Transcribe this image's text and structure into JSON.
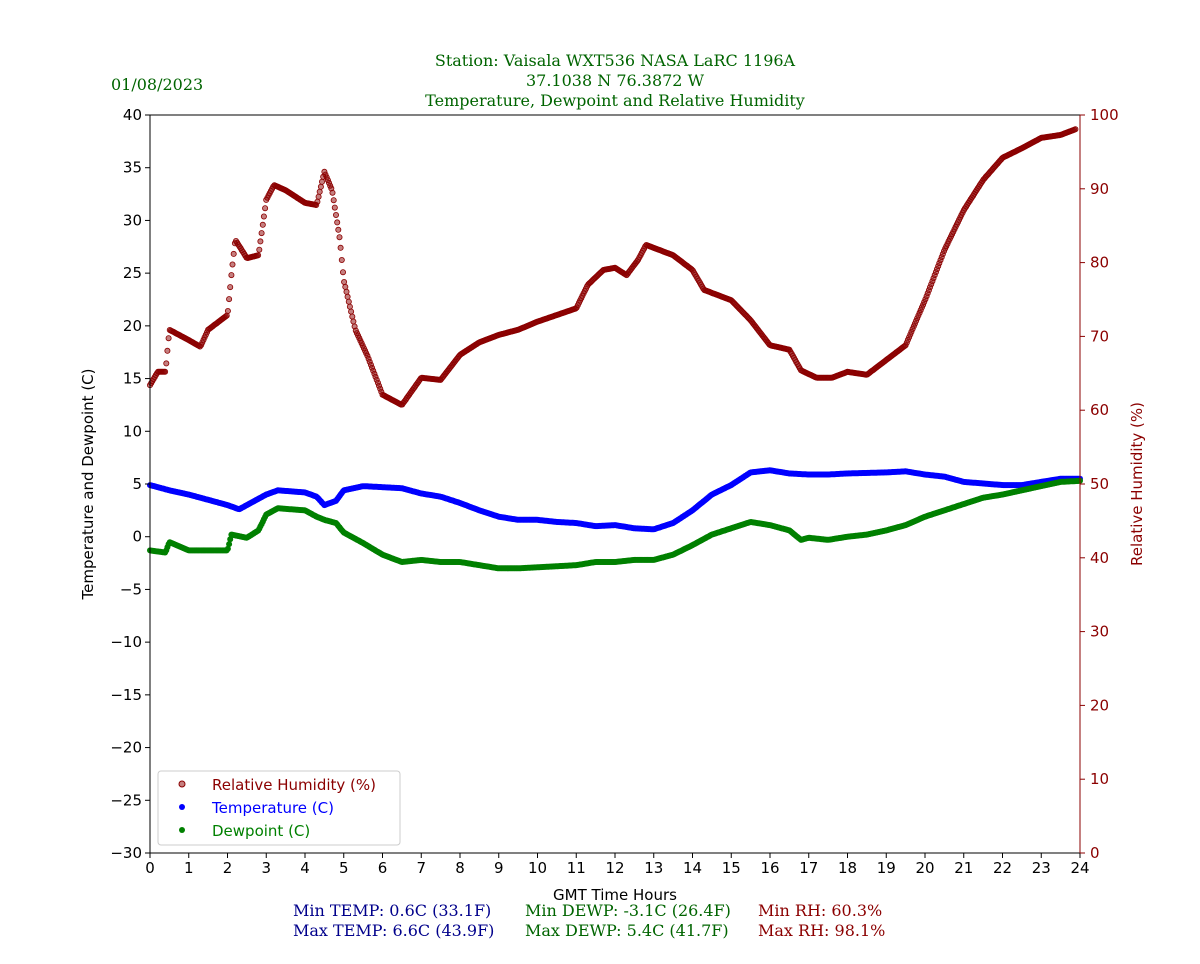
{
  "header": {
    "date": "01/08/2023",
    "title_line1": "Station:  Vaisala WXT536  NASA LaRC 1196A",
    "title_line2": "37.1038 N 76.3872 W",
    "title_line3": "Temperature, Dewpoint and Relative Humidity"
  },
  "stats": {
    "min_temp": "Min TEMP: 0.6C (33.1F)",
    "max_temp": "Max TEMP: 6.6C (43.9F)",
    "min_dewp": "Min DEWP: -3.1C (26.4F)",
    "max_dewp": "Max DEWP: 5.4C (41.7F)",
    "min_rh": "Min RH: 60.3%",
    "max_rh": "Max RH: 98.1%"
  },
  "colors": {
    "title": "#006400",
    "rh": "#8b0000",
    "temp": "#0000ff",
    "dewp": "#008000",
    "temp_stat": "#00008b"
  },
  "chart_data": {
    "type": "scatter",
    "xlabel": "GMT Time Hours",
    "ylabel": "Temperature and Dewpoint (C)",
    "y2label": "Relative Humidity (%)",
    "xlim": [
      0,
      24
    ],
    "ylim": [
      -30,
      40
    ],
    "y2lim": [
      0,
      100
    ],
    "xticks": [
      "0",
      "1",
      "2",
      "3",
      "4",
      "5",
      "6",
      "7",
      "8",
      "9",
      "10",
      "11",
      "12",
      "13",
      "14",
      "15",
      "16",
      "17",
      "18",
      "19",
      "20",
      "21",
      "22",
      "23",
      "24"
    ],
    "yticks": [
      "−30",
      "−25",
      "−20",
      "−15",
      "−10",
      "−5",
      "0",
      "5",
      "10",
      "15",
      "20",
      "25",
      "30",
      "35",
      "40"
    ],
    "y2ticks": [
      "0",
      "10",
      "20",
      "30",
      "40",
      "50",
      "60",
      "70",
      "80",
      "90",
      "100"
    ],
    "legend_position": "lower-left",
    "series": [
      {
        "name": "Relative Humidity (%)",
        "axis": "right",
        "color": "#8b0000",
        "x": [
          0,
          0.2,
          0.4,
          0.5,
          1,
          1.3,
          1.5,
          2,
          2.1,
          2.2,
          2.5,
          2.8,
          3,
          3.2,
          3.5,
          4,
          4.3,
          4.5,
          4.7,
          4.9,
          5,
          5.3,
          5.6,
          6,
          6.5,
          7,
          7.5,
          8,
          8.5,
          9,
          9.5,
          10,
          10.5,
          11,
          11.3,
          11.7,
          12,
          12.3,
          12.6,
          12.8,
          13.5,
          14,
          14.3,
          15,
          15.5,
          16,
          16.5,
          16.8,
          17.2,
          17.6,
          18,
          18.5,
          19,
          19.5,
          20,
          20.5,
          21,
          21.5,
          22,
          22.5,
          23,
          23.5,
          23.9
        ],
        "y": [
          63.4,
          65.2,
          65.2,
          70.9,
          69.5,
          68.6,
          70.9,
          72.9,
          78.3,
          83.1,
          80.6,
          81.0,
          88.5,
          90.5,
          89.8,
          88.1,
          87.8,
          92.3,
          89.8,
          83.1,
          77.6,
          70.9,
          67.5,
          62.1,
          60.7,
          64.4,
          64.1,
          67.5,
          69.2,
          70.2,
          70.9,
          72.0,
          72.9,
          73.8,
          77.0,
          79.0,
          79.3,
          78.3,
          80.4,
          82.4,
          81.0,
          79.0,
          76.3,
          74.9,
          72.2,
          68.8,
          68.2,
          65.4,
          64.4,
          64.4,
          65.2,
          64.8,
          66.8,
          68.8,
          74.9,
          81.7,
          87.1,
          91.2,
          94.2,
          95.5,
          96.9,
          97.3,
          98.1
        ]
      },
      {
        "name": "Temperature (C)",
        "axis": "left",
        "color": "#0000ff",
        "x": [
          0,
          0.5,
          1,
          1.5,
          2,
          2.3,
          2.5,
          3,
          3.3,
          4,
          4.3,
          4.5,
          4.8,
          5,
          5.5,
          6,
          6.5,
          7,
          7.5,
          8,
          8.5,
          9,
          9.5,
          10,
          10.5,
          11,
          11.5,
          12,
          12.5,
          13,
          13.5,
          14,
          14.5,
          15,
          15.5,
          16,
          16.5,
          17,
          17.5,
          18,
          19,
          19.5,
          20,
          20.5,
          21,
          22,
          22.5,
          23,
          23.5,
          24
        ],
        "y": [
          4.9,
          4.4,
          4.0,
          3.5,
          3.0,
          2.6,
          3.0,
          4.0,
          4.4,
          4.2,
          3.8,
          3.0,
          3.4,
          4.4,
          4.8,
          4.7,
          4.6,
          4.1,
          3.8,
          3.2,
          2.5,
          1.9,
          1.6,
          1.6,
          1.4,
          1.3,
          1.0,
          1.1,
          0.8,
          0.7,
          1.3,
          2.5,
          4.0,
          4.9,
          6.1,
          6.3,
          6.0,
          5.9,
          5.9,
          6.0,
          6.1,
          6.2,
          5.9,
          5.7,
          5.2,
          4.9,
          4.9,
          5.2,
          5.5,
          5.5
        ]
      },
      {
        "name": "Dewpoint (C)",
        "axis": "left",
        "color": "#008000",
        "x": [
          0,
          0.4,
          0.5,
          1,
          1.5,
          2,
          2.1,
          2.5,
          2.8,
          3,
          3.3,
          4,
          4.3,
          4.5,
          4.8,
          5,
          5.5,
          6,
          6.5,
          7,
          7.5,
          8,
          8.5,
          9,
          9.5,
          10,
          11,
          11.5,
          12,
          12.5,
          13,
          13.5,
          14,
          14.5,
          15,
          15.5,
          16,
          16.5,
          16.8,
          17,
          17.5,
          18,
          18.5,
          19,
          19.5,
          20,
          20.5,
          21,
          21.5,
          22,
          22.5,
          23,
          23.5,
          24
        ],
        "y": [
          -1.3,
          -1.5,
          -0.5,
          -1.3,
          -1.3,
          -1.3,
          0.2,
          -0.1,
          0.6,
          2.1,
          2.7,
          2.5,
          1.9,
          1.6,
          1.3,
          0.4,
          -0.6,
          -1.7,
          -2.4,
          -2.2,
          -2.4,
          -2.4,
          -2.7,
          -3.0,
          -3.0,
          -2.9,
          -2.7,
          -2.4,
          -2.4,
          -2.2,
          -2.2,
          -1.7,
          -0.8,
          0.2,
          0.8,
          1.4,
          1.1,
          0.6,
          -0.3,
          -0.1,
          -0.3,
          0,
          0.2,
          0.6,
          1.1,
          1.9,
          2.5,
          3.1,
          3.7,
          4.0,
          4.4,
          4.8,
          5.2,
          5.3
        ]
      }
    ]
  }
}
